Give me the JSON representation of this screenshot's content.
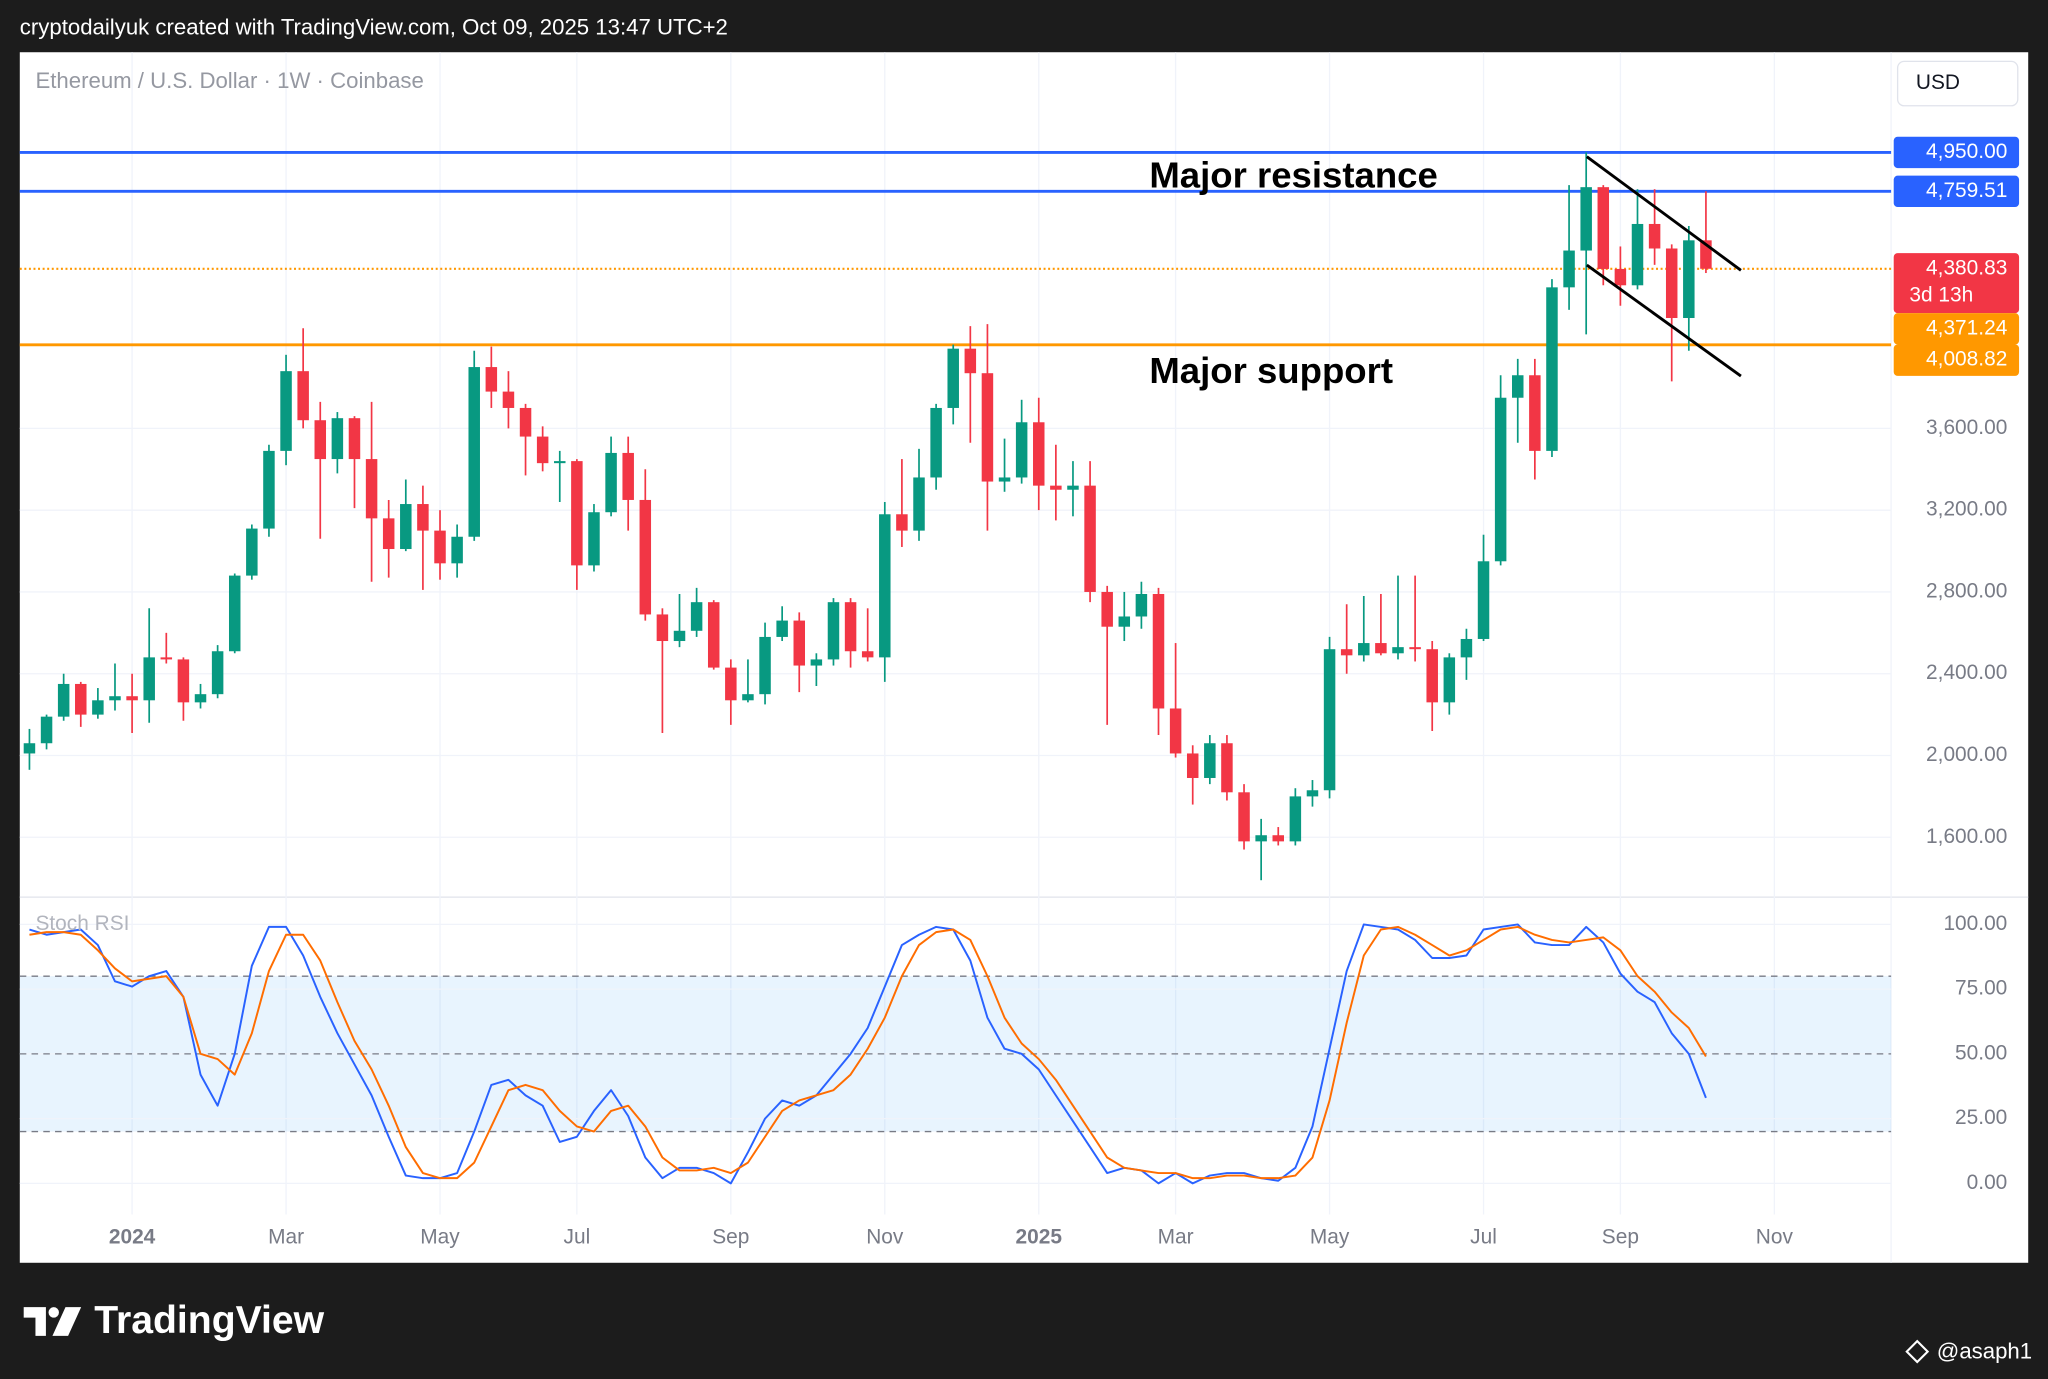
{
  "header": {
    "text": "cryptodailyuk created with TradingView.com, Oct 09, 2025 13:47 UTC+2"
  },
  "footer": {
    "brand": "TradingView",
    "author": "@asaph1"
  },
  "chart_data": [
    {
      "type": "candlestick",
      "title": "Ethereum / U.S. Dollar · 1W · Coinbase",
      "currency": "USD",
      "annotations": [
        "Major resistance",
        "Major support"
      ],
      "up_color": "#089981",
      "down_color": "#f23645",
      "ylim": [
        1320,
        5440
      ],
      "yticks": [
        {
          "value": 1600,
          "label": "1,600.00"
        },
        {
          "value": 2000,
          "label": "2,000.00"
        },
        {
          "value": 2400,
          "label": "2,400.00"
        },
        {
          "value": 2800,
          "label": "2,800.00"
        },
        {
          "value": 3200,
          "label": "3,200.00"
        },
        {
          "value": 3600,
          "label": "3,600.00"
        }
      ],
      "grid": true,
      "levels": [
        {
          "value": 4950,
          "label": "4,950.00",
          "color": "#2962ff",
          "style": "solid"
        },
        {
          "value": 4759.51,
          "label": "4,759.51",
          "color": "#2962ff",
          "style": "solid"
        },
        {
          "value": 4380.83,
          "label": "4,380.83",
          "countdown": "3d 13h",
          "color": "#ff9800",
          "tag_color": "#f23645",
          "style": "dotted"
        },
        {
          "value": 4371.24,
          "label": "4,371.24",
          "color": "#ff9800",
          "style": "none"
        },
        {
          "value": 4008.82,
          "label": "4,008.82",
          "color": "#ff9800",
          "style": "solid"
        }
      ],
      "categories": [
        null,
        null,
        null,
        null,
        null,
        null,
        "2024",
        null,
        null,
        null,
        null,
        null,
        null,
        null,
        null,
        "Mar",
        null,
        null,
        null,
        null,
        null,
        null,
        null,
        null,
        "May",
        null,
        null,
        null,
        null,
        null,
        null,
        null,
        "Jul",
        null,
        null,
        null,
        null,
        null,
        null,
        null,
        null,
        "Sep",
        null,
        null,
        null,
        null,
        null,
        null,
        null,
        null,
        "Nov",
        null,
        null,
        null,
        null,
        null,
        null,
        null,
        null,
        "2025",
        null,
        null,
        null,
        null,
        null,
        null,
        null,
        "Mar",
        null,
        null,
        null,
        null,
        null,
        null,
        null,
        null,
        "May",
        null,
        null,
        null,
        null,
        null,
        null,
        null,
        null,
        "Jul",
        null,
        null,
        null,
        null,
        null,
        null,
        null,
        "Sep",
        null,
        null,
        null,
        null,
        null,
        null,
        null,
        null,
        "Nov"
      ],
      "open": [
        2010,
        2060,
        2190,
        2350,
        2200,
        2270,
        2290,
        2270,
        2480,
        2470,
        2260,
        2300,
        2510,
        2880,
        3110,
        3490,
        3880,
        3640,
        3450,
        3650,
        3450,
        3160,
        3010,
        3230,
        3100,
        2940,
        3070,
        3900,
        3780,
        3700,
        3560,
        3430,
        3440,
        2930,
        3190,
        3480,
        3250,
        2690,
        2560,
        2610,
        2750,
        2430,
        2270,
        2300,
        2580,
        2660,
        2440,
        2470,
        2750,
        2510,
        2480,
        3180,
        3100,
        3360,
        3700,
        3990,
        3870,
        3340,
        3360,
        3630,
        3320,
        3300,
        3320,
        2800,
        2630,
        2680,
        2790,
        2230,
        2010,
        1890,
        2060,
        1820,
        1580,
        1610,
        1580,
        1800,
        1830,
        2520,
        2490,
        2550,
        2500,
        2530,
        2520,
        2260,
        2480,
        2570,
        2950,
        3750,
        3860,
        3490,
        4290,
        4470,
        4780,
        4380,
        4300,
        4600,
        4480,
        4140,
        4520,
        null,
        null,
        null,
        null
      ],
      "high": [
        2130,
        2200,
        2400,
        2360,
        2330,
        2450,
        2400,
        2720,
        2600,
        2480,
        2350,
        2540,
        2890,
        3130,
        3520,
        3960,
        4090,
        3730,
        3680,
        3660,
        3730,
        3250,
        3350,
        3320,
        3200,
        3130,
        3980,
        4000,
        3880,
        3720,
        3610,
        3490,
        3450,
        3230,
        3560,
        3560,
        3400,
        2720,
        2790,
        2820,
        2760,
        2470,
        2470,
        2650,
        2730,
        2700,
        2500,
        2770,
        2770,
        2720,
        3240,
        3450,
        3500,
        3720,
        4010,
        4100,
        4110,
        3550,
        3740,
        3750,
        3520,
        3440,
        3440,
        2830,
        2800,
        2850,
        2820,
        2550,
        2050,
        2100,
        2100,
        1860,
        1690,
        1650,
        1840,
        1880,
        2580,
        2740,
        2780,
        2790,
        2880,
        2880,
        2560,
        2500,
        2620,
        3080,
        3860,
        3940,
        3940,
        4330,
        4790,
        4950,
        4790,
        4490,
        4770,
        4770,
        4500,
        4590,
        4760,
        null,
        null,
        null,
        null
      ],
      "low": [
        1930,
        2030,
        2170,
        2140,
        2180,
        2220,
        2110,
        2160,
        2450,
        2170,
        2230,
        2280,
        2500,
        2860,
        3070,
        3420,
        3600,
        3060,
        3380,
        3210,
        2850,
        2870,
        3000,
        2810,
        2860,
        2870,
        3050,
        3700,
        3600,
        3370,
        3390,
        3240,
        2810,
        2900,
        3170,
        3100,
        2660,
        2110,
        2530,
        2580,
        2420,
        2150,
        2260,
        2250,
        2560,
        2310,
        2340,
        2440,
        2430,
        2460,
        2360,
        3020,
        3050,
        3300,
        3620,
        3530,
        3100,
        3290,
        3330,
        3200,
        3150,
        3170,
        2750,
        2150,
        2560,
        2620,
        2100,
        1990,
        1760,
        1860,
        1780,
        1540,
        1390,
        1560,
        1560,
        1750,
        1790,
        2400,
        2460,
        2490,
        2470,
        2460,
        2120,
        2200,
        2370,
        2560,
        2930,
        3530,
        3350,
        3460,
        4180,
        4060,
        4300,
        4200,
        4280,
        4400,
        3830,
        3980,
        4360,
        null,
        null,
        null,
        null
      ],
      "close": [
        2060,
        2190,
        2350,
        2200,
        2270,
        2290,
        2270,
        2480,
        2470,
        2260,
        2300,
        2510,
        2880,
        3110,
        3490,
        3880,
        3640,
        3450,
        3650,
        3450,
        3160,
        3010,
        3230,
        3100,
        2940,
        3070,
        3900,
        3780,
        3700,
        3560,
        3430,
        3440,
        2930,
        3190,
        3480,
        3250,
        2690,
        2560,
        2610,
        2750,
        2430,
        2270,
        2300,
        2580,
        2660,
        2440,
        2470,
        2750,
        2510,
        2480,
        3180,
        3100,
        3360,
        3700,
        3990,
        3870,
        3340,
        3360,
        3630,
        3320,
        3300,
        3320,
        2800,
        2630,
        2680,
        2790,
        2230,
        2010,
        1890,
        2060,
        1820,
        1580,
        1610,
        1580,
        1800,
        1830,
        2520,
        2490,
        2550,
        2500,
        2530,
        2520,
        2260,
        2480,
        2570,
        2950,
        3750,
        3860,
        3490,
        4290,
        4470,
        4780,
        4380,
        4300,
        4600,
        4480,
        4140,
        4520,
        4380.83,
        null,
        null,
        null,
        null
      ]
    },
    {
      "type": "line",
      "title": "Stoch RSI",
      "ylim": [
        -12,
        109
      ],
      "yticks": [
        {
          "value": 0,
          "label": "0.00"
        },
        {
          "value": 25,
          "label": "25.00"
        },
        {
          "value": 50,
          "label": "50.00"
        },
        {
          "value": 75,
          "label": "75.00"
        },
        {
          "value": 100,
          "label": "100.00"
        }
      ],
      "levels": [
        80,
        50,
        20
      ],
      "band_color": "#2196f3",
      "series": [
        {
          "color": "#2962ff",
          "values": [
            98,
            96,
            97,
            98,
            92,
            78,
            76,
            80,
            82,
            72,
            42,
            30,
            50,
            84,
            99,
            99,
            88,
            72,
            58,
            46,
            34,
            18,
            3,
            2,
            2,
            4,
            20,
            38,
            40,
            34,
            30,
            16,
            18,
            28,
            36,
            26,
            10,
            2,
            6,
            6,
            4,
            0,
            12,
            25,
            32,
            30,
            34,
            42,
            50,
            60,
            76,
            92,
            96,
            99,
            98,
            86,
            64,
            52,
            50,
            44,
            34,
            24,
            14,
            4,
            6,
            5,
            0,
            4,
            0,
            3,
            4,
            4,
            2,
            1,
            6,
            22,
            52,
            82,
            100,
            99,
            98,
            94,
            87,
            87,
            88,
            98,
            99,
            100,
            93,
            92,
            92,
            99,
            93,
            81,
            74,
            70,
            58,
            50,
            33,
            null,
            null,
            null,
            null
          ]
        },
        {
          "color": "#ff6d00",
          "values": [
            96,
            97,
            97,
            96,
            90,
            83,
            78,
            79,
            80,
            72,
            50,
            48,
            42,
            58,
            82,
            96,
            96,
            86,
            70,
            55,
            44,
            30,
            14,
            4,
            2,
            2,
            8,
            22,
            36,
            38,
            36,
            28,
            22,
            20,
            28,
            30,
            22,
            10,
            5,
            5,
            6,
            4,
            8,
            18,
            28,
            32,
            34,
            36,
            42,
            52,
            64,
            80,
            92,
            97,
            98,
            94,
            80,
            64,
            54,
            48,
            40,
            30,
            20,
            10,
            6,
            5,
            4,
            4,
            2,
            2,
            3,
            3,
            2,
            2,
            3,
            10,
            32,
            62,
            88,
            98,
            99,
            96,
            92,
            88,
            90,
            94,
            98,
            99,
            96,
            94,
            93,
            94,
            95,
            90,
            80,
            74,
            66,
            60,
            49,
            null,
            null,
            null,
            null
          ]
        }
      ]
    }
  ]
}
